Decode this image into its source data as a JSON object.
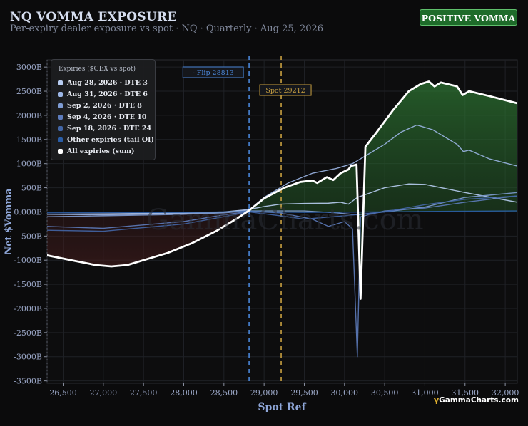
{
  "header": {
    "title": "NQ VOMMA EXPOSURE",
    "subtitle": "Per-expiry dealer exposure vs spot · NQ · Quarterly · Aug 25, 2026",
    "badge": "POSITIVE VOMMA",
    "badge_color": "#1e6b2a"
  },
  "watermark": "GammaCharts.com",
  "brand": {
    "mark": "γ",
    "text": "GammaCharts.com"
  },
  "chart_data": {
    "type": "line",
    "title": "NQ VOMMA EXPOSURE",
    "xlabel": "Spot Ref",
    "ylabel": "Net $Vomma",
    "xlim": [
      26300,
      32150
    ],
    "ylim": [
      -3550,
      3150
    ],
    "x_ticks": [
      26500,
      27000,
      27500,
      28000,
      28500,
      29000,
      29500,
      30000,
      30500,
      31000,
      31500,
      32000
    ],
    "x_tick_labels": [
      "26,500",
      "27,000",
      "27,500",
      "28,000",
      "28,500",
      "29,000",
      "29,500",
      "30,000",
      "30,500",
      "31,000",
      "31,500",
      "32,000"
    ],
    "y_ticks": [
      3000,
      2500,
      2000,
      1500,
      1000,
      500,
      0,
      -500,
      -1000,
      -1500,
      -2000,
      -2500,
      -3000,
      -3500
    ],
    "y_tick_labels": [
      "3000B",
      "2500B",
      "2000B",
      "1500B",
      "1000B",
      "500B",
      "0.000B",
      "-500B",
      "-1000B",
      "-1500B",
      "-2000B",
      "-2500B",
      "-3000B",
      "-3500B"
    ],
    "grid": true,
    "legend": {
      "title": "Expiries ($GEX vs spot)",
      "position": "top-left"
    },
    "markers": [
      {
        "label": "- Flip 28813",
        "x": 28813,
        "color": "#4a86d8"
      },
      {
        "label": "Spot 29212",
        "x": 29212,
        "color": "#c9a040"
      }
    ],
    "series": [
      {
        "name": "Aug 28, 2026 · DTE 3",
        "color": "#b8cdf2",
        "points": [
          [
            26300,
            -50
          ],
          [
            27000,
            -40
          ],
          [
            28000,
            -20
          ],
          [
            28500,
            0
          ],
          [
            28813,
            50
          ],
          [
            29000,
            110
          ],
          [
            29200,
            160
          ],
          [
            29500,
            175
          ],
          [
            29800,
            180
          ],
          [
            29950,
            200
          ],
          [
            30050,
            160
          ],
          [
            30160,
            300
          ],
          [
            30500,
            500
          ],
          [
            30800,
            580
          ],
          [
            31000,
            570
          ],
          [
            31500,
            400
          ],
          [
            32150,
            200
          ]
        ]
      },
      {
        "name": "Aug 31, 2026 · DTE 6",
        "color": "#9cb6e6",
        "points": [
          [
            26300,
            -50
          ],
          [
            27000,
            -60
          ],
          [
            28000,
            -30
          ],
          [
            28500,
            -10
          ],
          [
            28813,
            40
          ],
          [
            29000,
            300
          ],
          [
            29300,
            600
          ],
          [
            29600,
            800
          ],
          [
            29900,
            900
          ],
          [
            30100,
            1000
          ],
          [
            30300,
            1200
          ],
          [
            30500,
            1400
          ],
          [
            30700,
            1650
          ],
          [
            30900,
            1800
          ],
          [
            31100,
            1700
          ],
          [
            31300,
            1500
          ],
          [
            31400,
            1400
          ],
          [
            31480,
            1250
          ],
          [
            31550,
            1280
          ],
          [
            31800,
            1100
          ],
          [
            32150,
            950
          ]
        ]
      },
      {
        "name": "Sep 2, 2026 · DTE 8",
        "color": "#7e9cd3",
        "points": [
          [
            26300,
            -100
          ],
          [
            27000,
            -80
          ],
          [
            28000,
            -50
          ],
          [
            28500,
            -20
          ],
          [
            28813,
            20
          ],
          [
            29500,
            20
          ],
          [
            29900,
            -20
          ],
          [
            30160,
            -60
          ],
          [
            30500,
            0
          ],
          [
            31000,
            100
          ],
          [
            31500,
            300
          ],
          [
            32150,
            400
          ]
        ]
      },
      {
        "name": "Sep 4, 2026 · DTE 10",
        "color": "#5d7cbd",
        "points": [
          [
            26300,
            -300
          ],
          [
            27000,
            -340
          ],
          [
            28000,
            -200
          ],
          [
            28500,
            -60
          ],
          [
            28813,
            10
          ],
          [
            29200,
            -20
          ],
          [
            29600,
            -150
          ],
          [
            29800,
            -300
          ],
          [
            30000,
            -200
          ],
          [
            30100,
            -350
          ],
          [
            30160,
            -3000
          ],
          [
            30200,
            -100
          ],
          [
            30500,
            20
          ],
          [
            31000,
            80
          ],
          [
            31500,
            200
          ],
          [
            32150,
            330
          ]
        ]
      },
      {
        "name": "Sep 18, 2026 · DTE 24",
        "color": "#4266a6",
        "points": [
          [
            26300,
            -380
          ],
          [
            27000,
            -400
          ],
          [
            28000,
            -250
          ],
          [
            28500,
            -100
          ],
          [
            28813,
            0
          ],
          [
            29200,
            -80
          ],
          [
            29500,
            -150
          ],
          [
            30000,
            -80
          ],
          [
            30500,
            0
          ],
          [
            31000,
            150
          ],
          [
            31500,
            260
          ],
          [
            32150,
            330
          ]
        ]
      },
      {
        "name": "Other expiries (tail OI)",
        "color": "#2a5ea8",
        "points": [
          [
            26300,
            -20
          ],
          [
            28000,
            -10
          ],
          [
            28813,
            5
          ],
          [
            29500,
            -10
          ],
          [
            30000,
            -5
          ],
          [
            30500,
            0
          ],
          [
            31000,
            10
          ],
          [
            32150,
            20
          ]
        ]
      },
      {
        "name": "All expiries (sum)",
        "color": "#ffffff",
        "points": [
          [
            26300,
            -900
          ],
          [
            26600,
            -1000
          ],
          [
            26900,
            -1100
          ],
          [
            27100,
            -1130
          ],
          [
            27300,
            -1100
          ],
          [
            27500,
            -1000
          ],
          [
            27800,
            -850
          ],
          [
            28100,
            -650
          ],
          [
            28400,
            -400
          ],
          [
            28650,
            -150
          ],
          [
            28813,
            30
          ],
          [
            29000,
            280
          ],
          [
            29250,
            500
          ],
          [
            29450,
            620
          ],
          [
            29600,
            650
          ],
          [
            29660,
            600
          ],
          [
            29780,
            720
          ],
          [
            29860,
            660
          ],
          [
            29950,
            800
          ],
          [
            30050,
            880
          ],
          [
            30080,
            950
          ],
          [
            30150,
            980
          ],
          [
            30200,
            -1800
          ],
          [
            30260,
            1350
          ],
          [
            30400,
            1650
          ],
          [
            30600,
            2100
          ],
          [
            30800,
            2500
          ],
          [
            30950,
            2650
          ],
          [
            31050,
            2700
          ],
          [
            31120,
            2600
          ],
          [
            31200,
            2680
          ],
          [
            31300,
            2640
          ],
          [
            31400,
            2600
          ],
          [
            31470,
            2420
          ],
          [
            31550,
            2500
          ],
          [
            31800,
            2400
          ],
          [
            32150,
            2250
          ]
        ]
      }
    ]
  }
}
